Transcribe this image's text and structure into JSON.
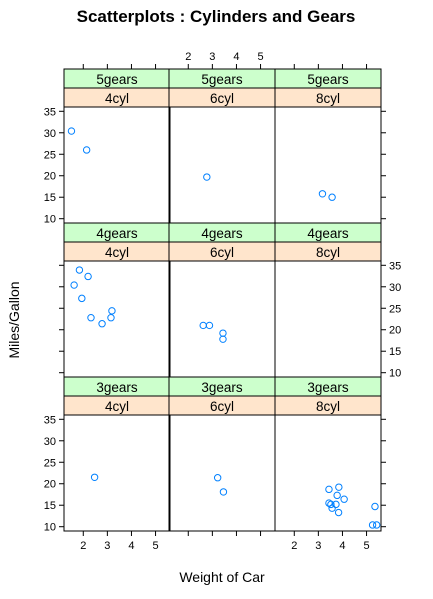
{
  "chart_data": {
    "type": "scatter",
    "title": "Scatterplots : Cylinders and Gears",
    "xlabel": "Weight of Car",
    "ylabel": "Miles/Gallon",
    "xlim": [
      1.2,
      5.6
    ],
    "ylim": [
      9,
      36
    ],
    "x_ticks": [
      2,
      3,
      4,
      5
    ],
    "y_ticks": [
      10,
      15,
      20,
      25,
      30,
      35
    ],
    "colors": {
      "gears_strip": "#ccffcc",
      "cyl_strip": "#ffe5cc",
      "point": "#0080ff"
    },
    "panels": [
      {
        "gears": "5gears",
        "cyl": "4cyl",
        "row": 0,
        "col": 0,
        "points": [
          [
            1.51,
            30.4
          ],
          [
            2.14,
            26.0
          ]
        ]
      },
      {
        "gears": "5gears",
        "cyl": "6cyl",
        "row": 0,
        "col": 1,
        "points": [
          [
            2.77,
            19.7
          ]
        ]
      },
      {
        "gears": "5gears",
        "cyl": "8cyl",
        "row": 0,
        "col": 2,
        "points": [
          [
            3.17,
            15.8
          ],
          [
            3.57,
            15.0
          ]
        ]
      },
      {
        "gears": "4gears",
        "cyl": "4cyl",
        "row": 1,
        "col": 0,
        "points": [
          [
            1.84,
            33.9
          ],
          [
            1.62,
            30.4
          ],
          [
            2.2,
            32.4
          ],
          [
            1.94,
            27.3
          ],
          [
            2.32,
            22.8
          ],
          [
            2.78,
            21.4
          ],
          [
            3.15,
            22.8
          ],
          [
            3.19,
            24.4
          ]
        ]
      },
      {
        "gears": "4gears",
        "cyl": "6cyl",
        "row": 1,
        "col": 1,
        "points": [
          [
            2.62,
            21.0
          ],
          [
            2.88,
            21.0
          ],
          [
            3.44,
            19.2
          ],
          [
            3.44,
            17.8
          ]
        ]
      },
      {
        "gears": "4gears",
        "cyl": "8cyl",
        "row": 1,
        "col": 2,
        "points": []
      },
      {
        "gears": "3gears",
        "cyl": "4cyl",
        "row": 2,
        "col": 0,
        "points": [
          [
            2.47,
            21.5
          ]
        ]
      },
      {
        "gears": "3gears",
        "cyl": "6cyl",
        "row": 2,
        "col": 1,
        "points": [
          [
            3.22,
            21.4
          ],
          [
            3.46,
            18.1
          ]
        ]
      },
      {
        "gears": "3gears",
        "cyl": "8cyl",
        "row": 2,
        "col": 2,
        "points": [
          [
            3.44,
            18.7
          ],
          [
            3.57,
            14.3
          ],
          [
            3.73,
            15.2
          ],
          [
            3.78,
            17.3
          ],
          [
            4.07,
            16.4
          ],
          [
            3.84,
            13.3
          ],
          [
            3.85,
            19.2
          ],
          [
            3.44,
            15.5
          ],
          [
            3.52,
            15.2
          ],
          [
            5.25,
            10.4
          ],
          [
            5.42,
            10.4
          ],
          [
            5.35,
            14.7
          ]
        ]
      }
    ]
  }
}
